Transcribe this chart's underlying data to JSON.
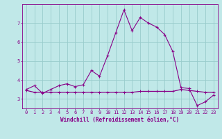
{
  "xlabel": "Windchill (Refroidissement éolien,°C)",
  "ylabel": "",
  "bg_color": "#c0e8e8",
  "line_color": "#880088",
  "grid_color": "#99cccc",
  "hours": [
    0,
    1,
    2,
    3,
    4,
    5,
    6,
    7,
    8,
    9,
    10,
    11,
    12,
    13,
    14,
    15,
    16,
    17,
    18,
    19,
    20,
    21,
    22,
    23
  ],
  "line1": [
    3.5,
    3.7,
    3.3,
    3.5,
    3.7,
    3.8,
    3.65,
    3.75,
    4.5,
    4.2,
    5.3,
    6.5,
    7.7,
    6.6,
    7.3,
    7.0,
    6.8,
    6.4,
    5.5,
    3.6,
    3.55,
    2.65,
    2.85,
    3.2
  ],
  "line2": [
    3.45,
    3.35,
    3.35,
    3.35,
    3.35,
    3.35,
    3.35,
    3.35,
    3.35,
    3.35,
    3.35,
    3.35,
    3.35,
    3.35,
    3.4,
    3.4,
    3.4,
    3.4,
    3.4,
    3.5,
    3.45,
    3.4,
    3.35,
    3.35
  ],
  "ylim": [
    2.5,
    8.0
  ],
  "yticks": [
    3,
    4,
    5,
    6,
    7
  ],
  "xlim": [
    -0.5,
    23.5
  ],
  "xticks": [
    0,
    1,
    2,
    3,
    4,
    5,
    6,
    7,
    8,
    9,
    10,
    11,
    12,
    13,
    14,
    15,
    16,
    17,
    18,
    19,
    20,
    21,
    22,
    23
  ]
}
